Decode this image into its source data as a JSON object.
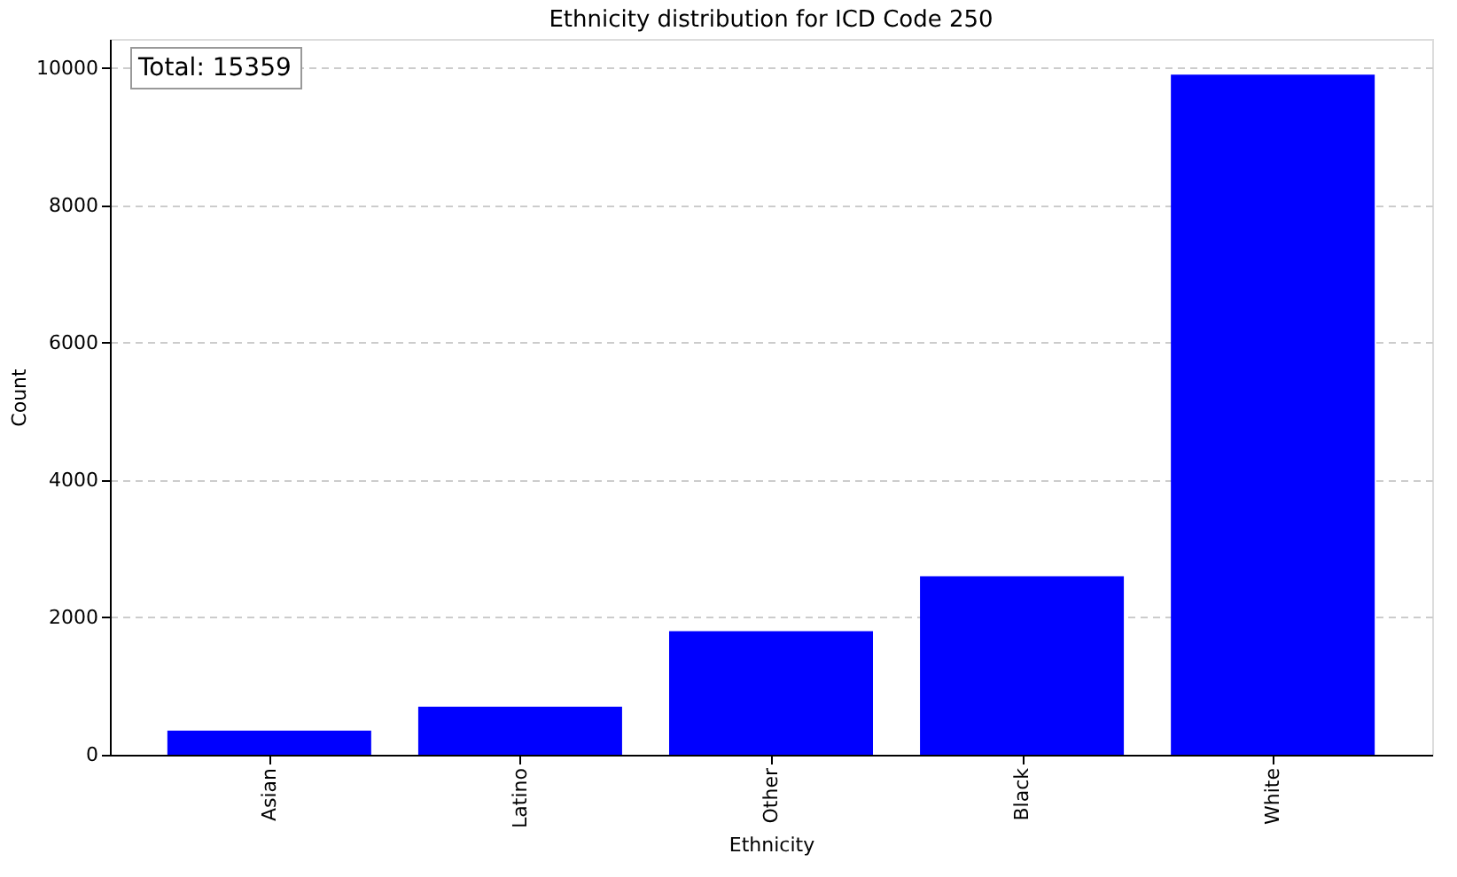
{
  "chart_data": {
    "type": "bar",
    "title": "Ethnicity distribution for ICD Code 250",
    "xlabel": "Ethnicity",
    "ylabel": "Count",
    "categories": [
      "Asian",
      "Latino",
      "Other",
      "Black",
      "White"
    ],
    "values": [
      350,
      700,
      1800,
      2600,
      9900
    ],
    "color": "#0000ff",
    "ylim": [
      0,
      10420
    ],
    "yticks": [
      0,
      2000,
      4000,
      6000,
      8000,
      10000
    ],
    "grid": "y",
    "annotations": [
      "Total: 15359"
    ]
  }
}
